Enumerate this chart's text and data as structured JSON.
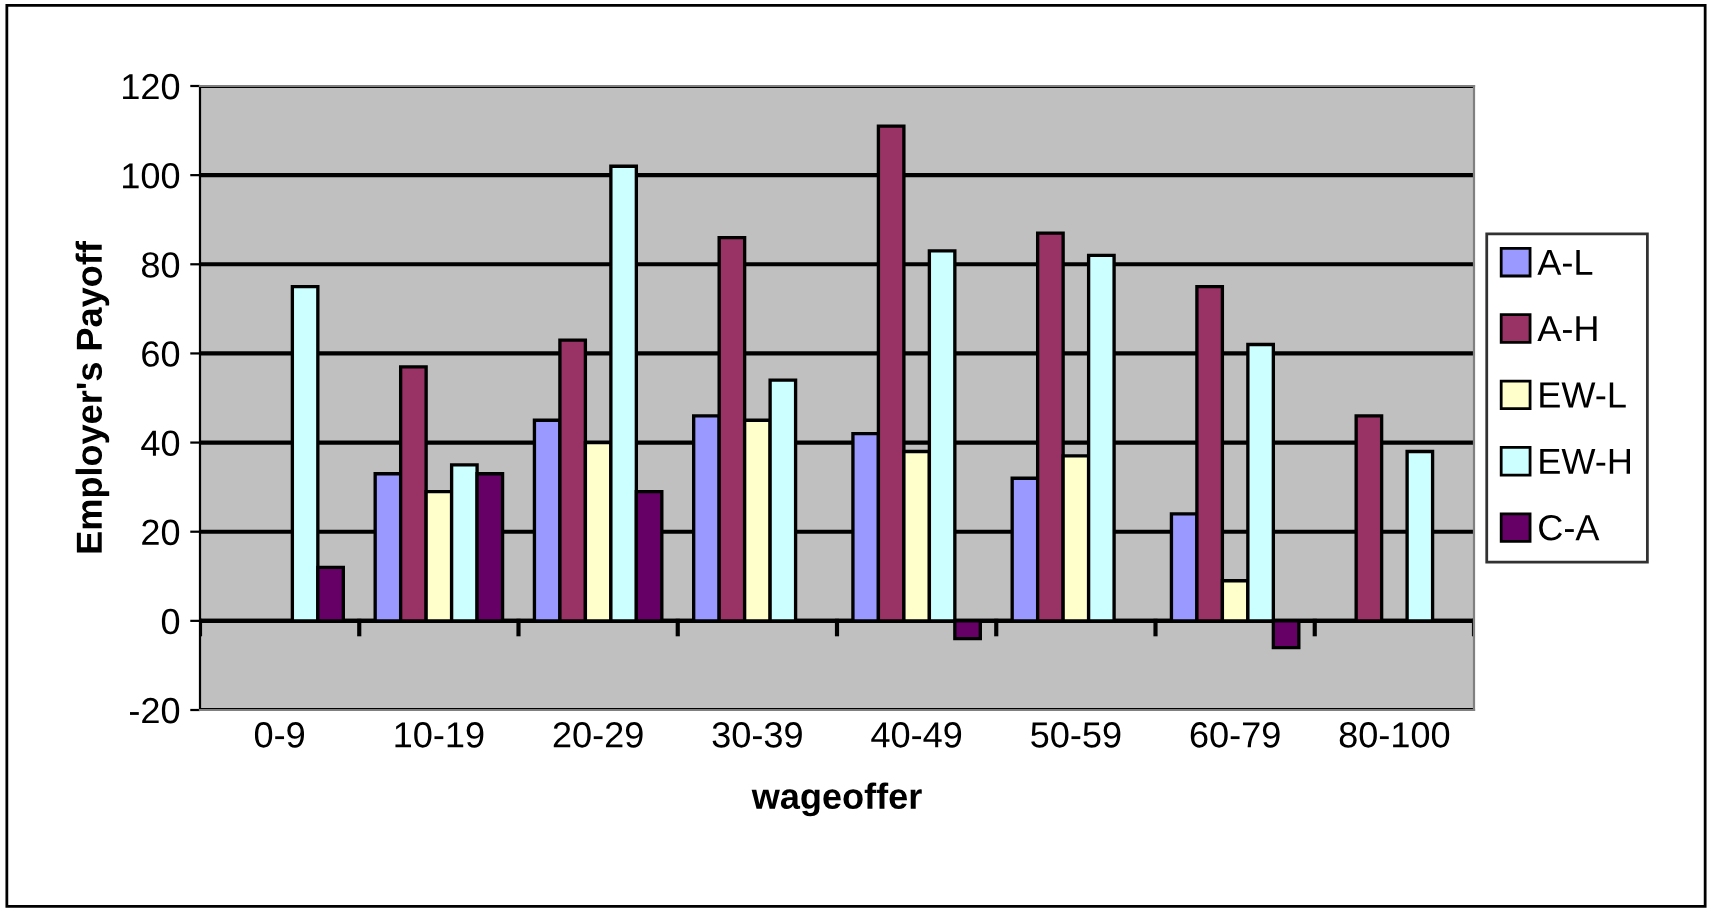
{
  "chart_data": {
    "type": "bar",
    "xlabel": "wageoffer",
    "ylabel": "Employer's Payoff",
    "categories": [
      "0-9",
      "10-19",
      "20-29",
      "30-39",
      "40-49",
      "50-59",
      "60-79",
      "80-100"
    ],
    "series": [
      {
        "name": "A-L",
        "color": "#9999ff",
        "values": [
          null,
          33,
          45,
          46,
          42,
          32,
          24,
          null
        ]
      },
      {
        "name": "A-H",
        "color": "#993366",
        "values": [
          null,
          57,
          63,
          86,
          111,
          87,
          75,
          46
        ]
      },
      {
        "name": "EW-L",
        "color": "#ffffcc",
        "values": [
          null,
          29,
          40,
          45,
          38,
          37,
          9,
          null
        ]
      },
      {
        "name": "EW-H",
        "color": "#ccffff",
        "values": [
          75,
          35,
          102,
          54,
          83,
          82,
          62,
          38
        ]
      },
      {
        "name": "C-A",
        "color": "#660066",
        "values": [
          12,
          33,
          29,
          null,
          -4,
          null,
          -6,
          null
        ]
      }
    ],
    "ylim": [
      -20,
      120
    ],
    "yticks": [
      -20,
      0,
      20,
      40,
      60,
      80,
      100,
      120
    ],
    "grid": "y",
    "legend": "right"
  }
}
